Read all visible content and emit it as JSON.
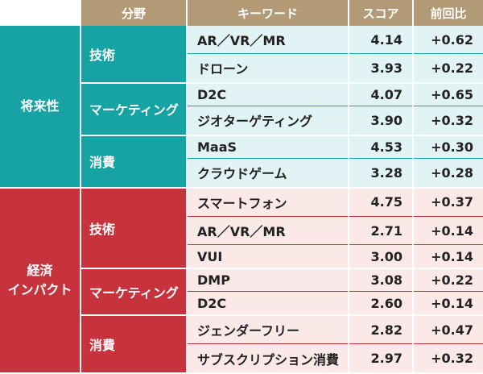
{
  "header": [
    "分野",
    "キーワード",
    "スコア",
    "前回比"
  ],
  "groups": [
    {
      "label": [
        "将来性"
      ],
      "categories": [
        {
          "label": "技術",
          "rows": [
            [
              "AR／VR／MR",
              "4.14",
              "+0.62"
            ],
            [
              "ドローン",
              "3.93",
              "+0.22"
            ]
          ]
        },
        {
          "label": "マーケティング",
          "rows": [
            [
              "D2C",
              "4.07",
              "+0.65"
            ],
            [
              "ジオターゲティング",
              "3.90",
              "+0.32"
            ]
          ]
        },
        {
          "label": "消費",
          "rows": [
            [
              "MaaS",
              "4.53",
              "+0.30"
            ],
            [
              "クラウドゲーム",
              "3.28",
              "+0.28"
            ]
          ]
        }
      ]
    },
    {
      "label": [
        "経済",
        "インパクト"
      ],
      "categories": [
        {
          "label": "技術",
          "rows": [
            [
              "スマートフォン",
              "4.75",
              "+0.37"
            ],
            [
              "AR／VR／MR",
              "2.71",
              "+0.14"
            ],
            [
              "VUI",
              "3.00",
              "+0.14"
            ]
          ]
        },
        {
          "label": "マーケティング",
          "rows": [
            [
              "DMP",
              "3.08",
              "+0.22"
            ],
            [
              "D2C",
              "2.60",
              "+0.14"
            ]
          ]
        },
        {
          "label": "消費",
          "rows": [
            [
              "ジェンダーフリー",
              "2.82",
              "+0.47"
            ],
            [
              "サブスクリプション消費",
              "2.97",
              "+0.32"
            ]
          ]
        }
      ]
    }
  ]
}
